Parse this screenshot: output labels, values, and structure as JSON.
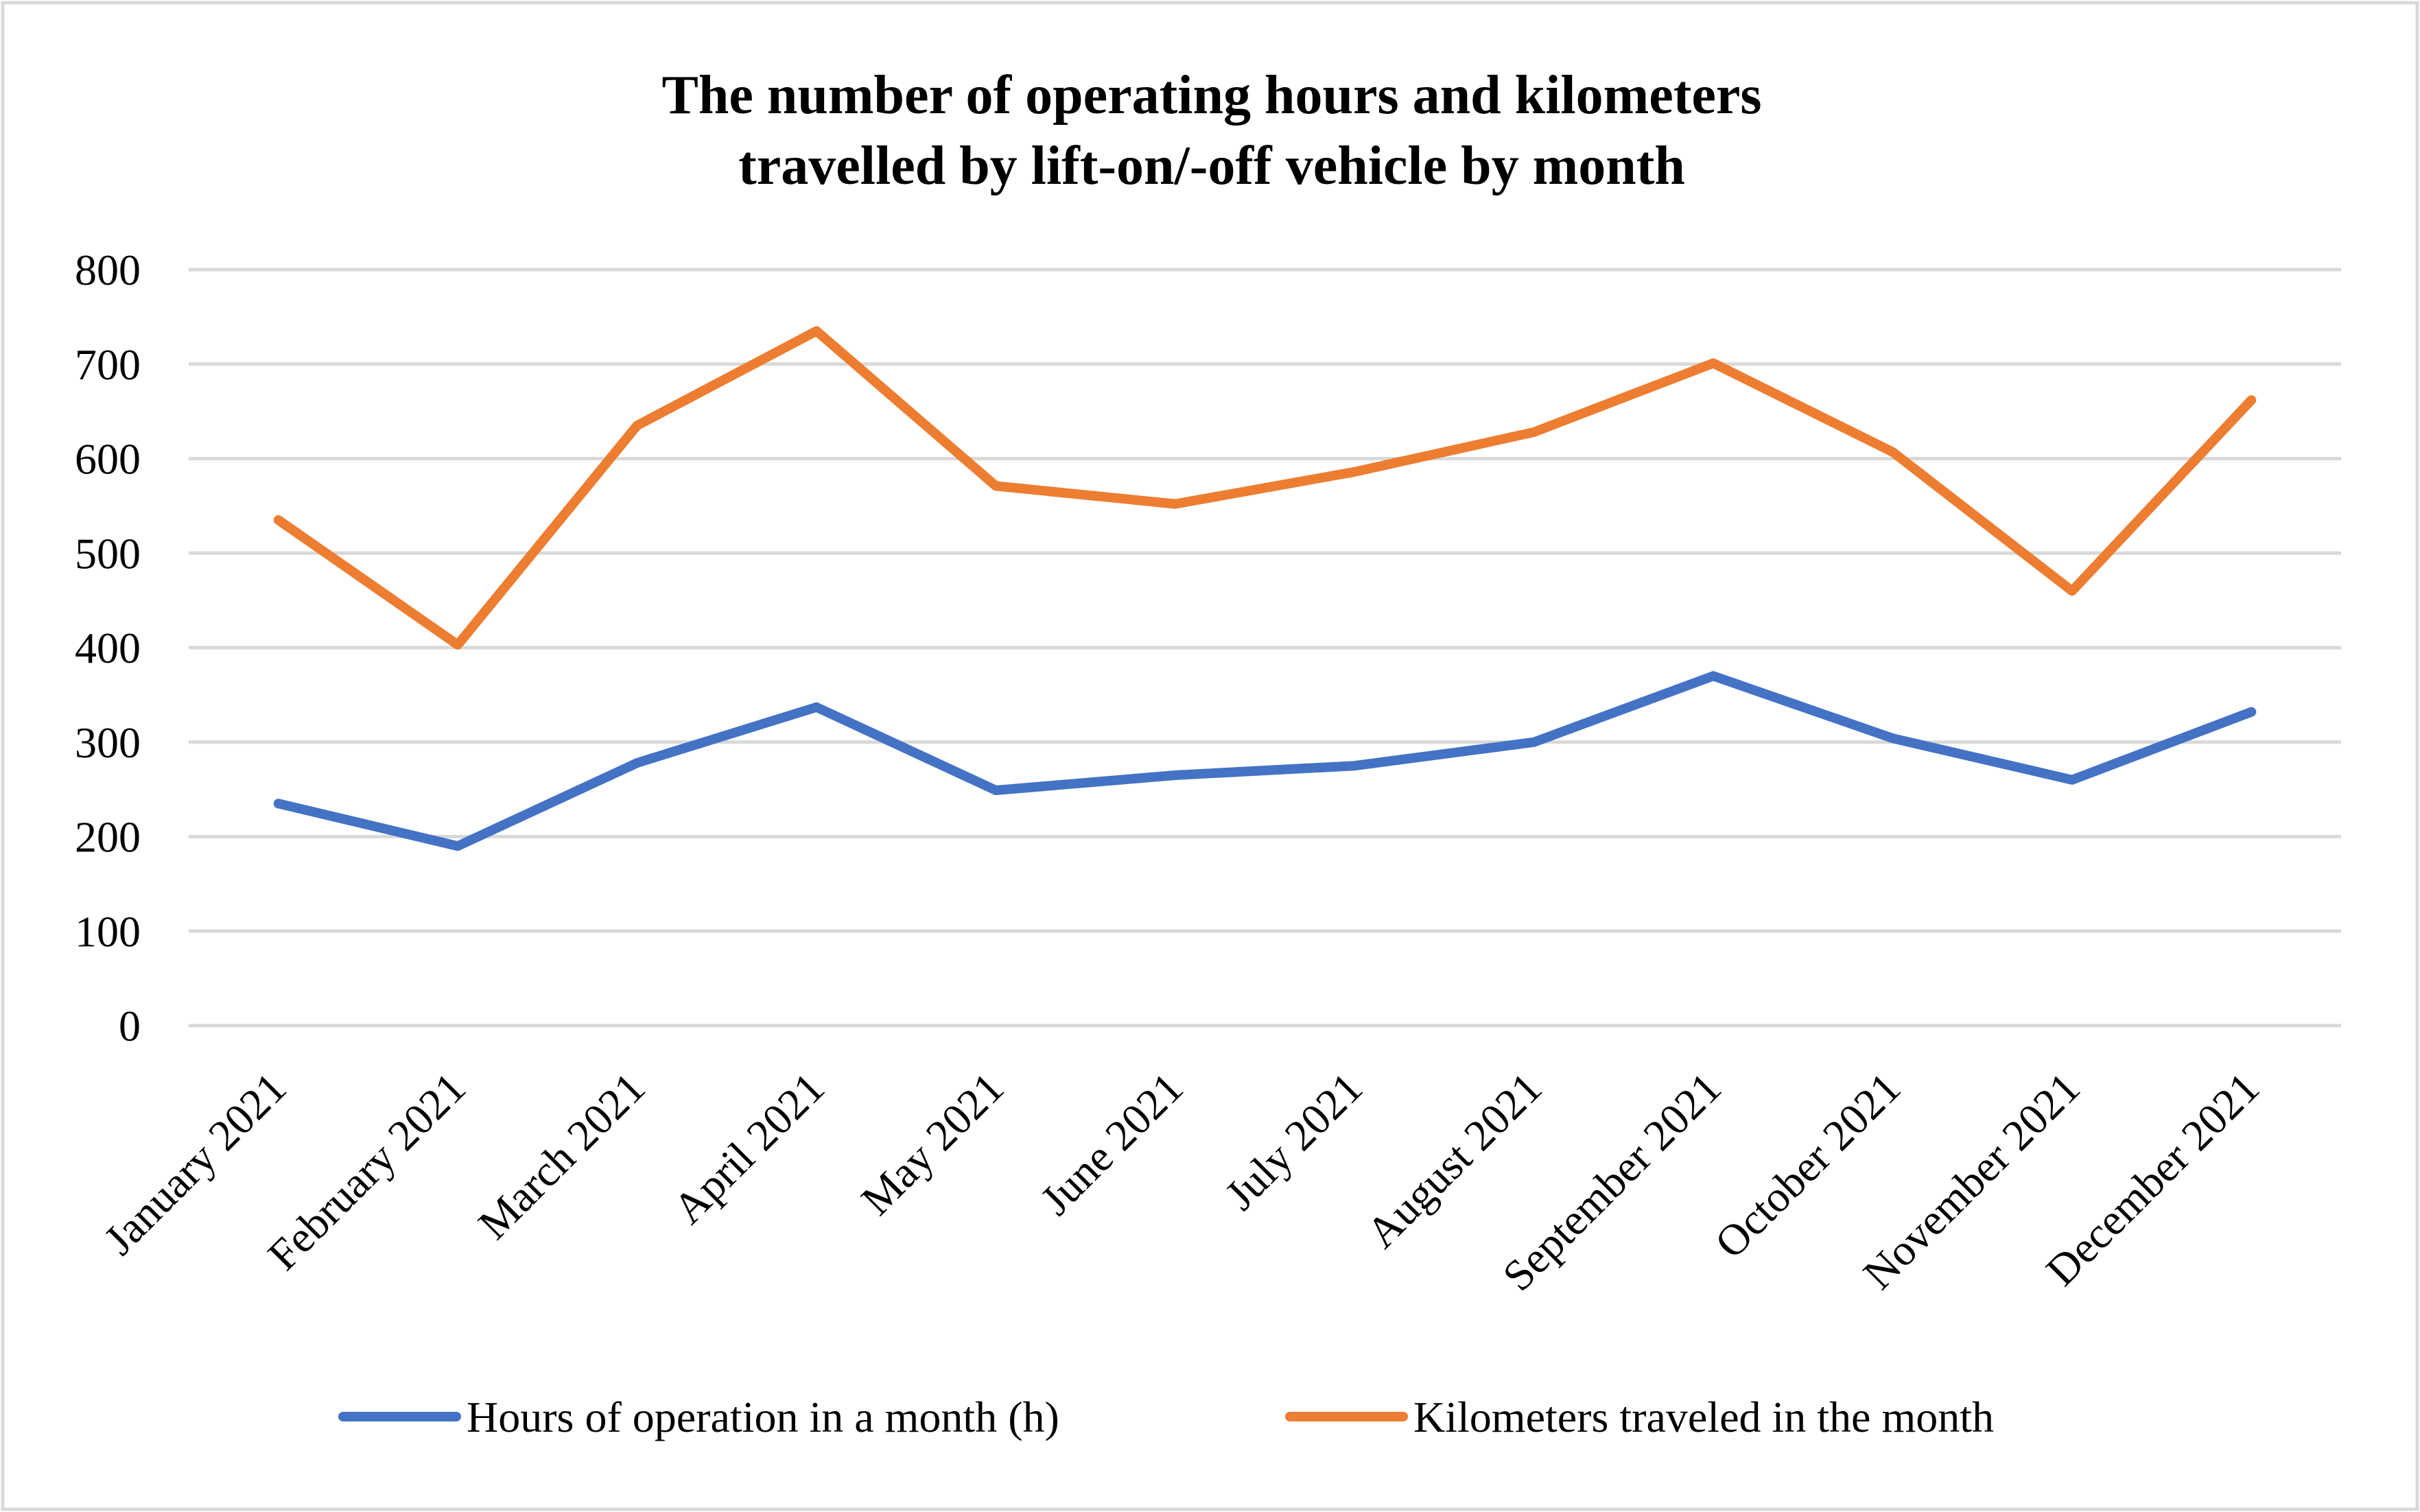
{
  "chart_data": {
    "type": "line",
    "title_lines": [
      "The number of operating hours and kilometers",
      "travelled by lift-on/-off vehicle by month"
    ],
    "categories": [
      "January 2021",
      "February 2021",
      "March 2021",
      "April 2021",
      "May 2021",
      "June 2021",
      "July 2021",
      "August 2021",
      "September 2021",
      "October 2021",
      "November 2021",
      "December 2021"
    ],
    "series": [
      {
        "name": "Hours of operation in a month (h)",
        "color": "#4472C4",
        "values": [
          235,
          190,
          278,
          337,
          249,
          265,
          275,
          300,
          370,
          304,
          260,
          332
        ]
      },
      {
        "name": "Kilometers traveled in the month",
        "color": "#ED7D31",
        "values": [
          535,
          403,
          635,
          735,
          571,
          552,
          586,
          628,
          701,
          607,
          460,
          662
        ]
      }
    ],
    "ylim": [
      0,
      800
    ],
    "yticks": [
      "0",
      "100",
      "200",
      "300",
      "400",
      "500",
      "600",
      "700",
      "800"
    ],
    "xlabel": "",
    "ylabel": "",
    "grid": true,
    "legend_position": "bottom",
    "colors": {
      "grid": "#D9D9D9",
      "border": "#D9D9D9",
      "text": "#000000"
    }
  }
}
